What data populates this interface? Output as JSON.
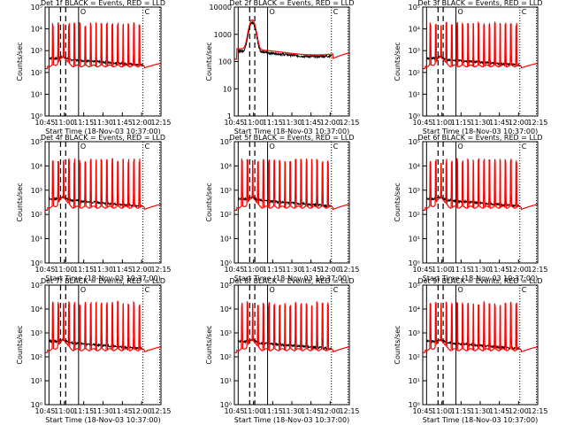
{
  "chart_data": [
    {
      "type": "line",
      "title": "Det 1f BLACK = Events, RED = LLD",
      "xlabel": "Start Time (18-Nov-03 10:37:00)",
      "ylabel": "Counts/sec",
      "yscale": "log",
      "ylim": [
        1,
        100000
      ],
      "yticks": [
        "10⁰",
        "10¹",
        "10²",
        "10³",
        "10⁴",
        "10⁵"
      ],
      "xlim": [
        8,
        98
      ],
      "xticks": [
        "10:45",
        "11:00",
        "11:15",
        "11:30",
        "11:45",
        "12:00",
        "12:15"
      ],
      "markers": {
        "C": "C",
        "O": "O"
      },
      "series": [
        {
          "name": "Events",
          "color": "#000000",
          "data_points_estimate": "baseline ~100-300 counts/sec"
        },
        {
          "name": "LLD",
          "color": "#ff0000",
          "data_points_estimate": "baseline ~200 counts/sec, spikes to ~20000"
        }
      ]
    },
    {
      "type": "line",
      "title": "Det 2f BLACK = Events, RED = LLD",
      "xlabel": "Start Time (18-Nov-03 10:37:00)",
      "ylabel": "Counts/sec",
      "yscale": "log",
      "ylim": [
        1,
        15000
      ],
      "yticks": [
        "1",
        "10",
        "100",
        "1000",
        "10000"
      ],
      "xlim": [
        8,
        98
      ],
      "xticks": [
        "10:45",
        "11:00",
        "11:15",
        "11:30",
        "11:45",
        "12:00",
        "12:15"
      ],
      "markers": {
        "C": "C",
        "O": "O"
      },
      "series": [
        {
          "name": "Events",
          "color": "#000000"
        },
        {
          "name": "LLD",
          "color": "#ff0000"
        }
      ]
    },
    {
      "type": "line",
      "title": "Det 3f BLACK = Events, RED = LLD",
      "xlabel": "Start Time (18-Nov-03 10:37:00)",
      "ylabel": "Counts/sec",
      "yscale": "log",
      "ylim": [
        1,
        100000
      ],
      "yticks": [
        "10⁰",
        "10¹",
        "10²",
        "10³",
        "10⁴",
        "10⁵"
      ],
      "xlim": [
        8,
        98
      ],
      "xticks": [
        "10:45",
        "11:00",
        "11:15",
        "11:30",
        "11:45",
        "12:00",
        "12:15"
      ],
      "markers": {
        "C": "C",
        "O": "O"
      },
      "series": [
        {
          "name": "Events",
          "color": "#000000"
        },
        {
          "name": "LLD",
          "color": "#ff0000"
        }
      ]
    },
    {
      "type": "line",
      "title": "Det 4f BLACK = Events, RED = LLD",
      "xlabel": "Start Time (18-Nov-03 10:37:00)",
      "ylabel": "Counts/sec",
      "yscale": "log",
      "ylim": [
        1,
        100000
      ],
      "yticks": [
        "10⁰",
        "10¹",
        "10²",
        "10³",
        "10⁴",
        "10⁵"
      ],
      "xlim": [
        8,
        98
      ],
      "xticks": [
        "10:45",
        "11:00",
        "11:15",
        "11:30",
        "11:45",
        "12:00",
        "12:15"
      ],
      "markers": {
        "C": "C",
        "O": "O"
      },
      "series": [
        {
          "name": "Events",
          "color": "#000000"
        },
        {
          "name": "LLD",
          "color": "#ff0000"
        }
      ]
    },
    {
      "type": "line",
      "title": "Det 5f BLACK = Events, RED = LLD",
      "xlabel": "Start Time (18-Nov-03 10:37:00)",
      "ylabel": "Counts/sec",
      "yscale": "log",
      "ylim": [
        1,
        100000
      ],
      "yticks": [
        "10⁰",
        "10¹",
        "10²",
        "10³",
        "10⁴",
        "10⁵"
      ],
      "xlim": [
        8,
        98
      ],
      "xticks": [
        "10:45",
        "11:00",
        "11:15",
        "11:30",
        "11:45",
        "12:00",
        "12:15"
      ],
      "markers": {
        "C": "C",
        "O": "O"
      },
      "series": [
        {
          "name": "Events",
          "color": "#000000"
        },
        {
          "name": "LLD",
          "color": "#ff0000"
        }
      ]
    },
    {
      "type": "line",
      "title": "Det 6f BLACK = Events, RED = LLD",
      "xlabel": "Start Time (18-Nov-03 10:37:00)",
      "ylabel": "Counts/sec",
      "yscale": "log",
      "ylim": [
        1,
        100000
      ],
      "yticks": [
        "10⁰",
        "10¹",
        "10²",
        "10³",
        "10⁴",
        "10⁵"
      ],
      "xlim": [
        8,
        98
      ],
      "xticks": [
        "10:45",
        "11:00",
        "11:15",
        "11:30",
        "11:45",
        "12:00",
        "12:15"
      ],
      "markers": {
        "C": "C",
        "O": "O"
      },
      "series": [
        {
          "name": "Events",
          "color": "#000000"
        },
        {
          "name": "LLD",
          "color": "#ff0000"
        }
      ]
    },
    {
      "type": "line",
      "title": "Det 7f BLACK = Events, RED = LLD",
      "xlabel": "Start Time (18-Nov-03 10:37:00)",
      "ylabel": "Counts/sec",
      "yscale": "log",
      "ylim": [
        1,
        100000
      ],
      "yticks": [
        "10⁰",
        "10¹",
        "10²",
        "10³",
        "10⁴",
        "10⁵"
      ],
      "xlim": [
        8,
        98
      ],
      "xticks": [
        "10:45",
        "11:00",
        "11:15",
        "11:30",
        "11:45",
        "12:00",
        "12:15"
      ],
      "markers": {
        "C": "C",
        "O": "O"
      },
      "series": [
        {
          "name": "Events",
          "color": "#000000"
        },
        {
          "name": "LLD",
          "color": "#ff0000"
        }
      ]
    },
    {
      "type": "line",
      "title": "Det 8f BLACK = Events, RED = LLD",
      "xlabel": "Start Time (18-Nov-03 10:37:00)",
      "ylabel": "Counts/sec",
      "yscale": "log",
      "ylim": [
        1,
        100000
      ],
      "yticks": [
        "10⁰",
        "10¹",
        "10²",
        "10³",
        "10⁴",
        "10⁵"
      ],
      "xlim": [
        8,
        98
      ],
      "xticks": [
        "10:45",
        "11:00",
        "11:15",
        "11:30",
        "11:45",
        "12:00",
        "12:15"
      ],
      "markers": {
        "C": "C",
        "O": "O"
      },
      "series": [
        {
          "name": "Events",
          "color": "#000000"
        },
        {
          "name": "LLD",
          "color": "#ff0000"
        }
      ]
    },
    {
      "type": "line",
      "title": "Det 9f BLACK = Events, RED = LLD",
      "xlabel": "Start Time (18-Nov-03 10:37:00)",
      "ylabel": "Counts/sec",
      "yscale": "log",
      "ylim": [
        1,
        100000
      ],
      "yticks": [
        "10⁰",
        "10¹",
        "10²",
        "10³",
        "10⁴",
        "10⁵"
      ],
      "xlim": [
        8,
        98
      ],
      "xticks": [
        "10:45",
        "11:00",
        "11:15",
        "11:30",
        "11:45",
        "12:00",
        "12:15"
      ],
      "markers": {
        "C": "C",
        "O": "O"
      },
      "series": [
        {
          "name": "Events",
          "color": "#000000"
        },
        {
          "name": "LLD",
          "color": "#ff0000"
        }
      ]
    }
  ]
}
